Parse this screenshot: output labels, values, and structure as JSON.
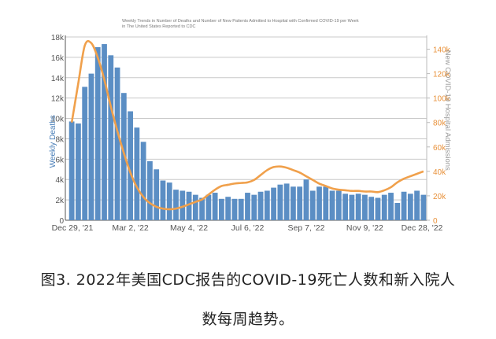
{
  "chart_data": {
    "type": "bar",
    "title_lines": [
      "Weekly Trends in Number of Deaths and Number of New Patients Admitted to Hospital with Confirmed COVID-19 per Week",
      "in The United States Reported to CDC"
    ],
    "ylabel": "Weekly Deaths",
    "ylabel_right": "New COVID-19 Hospital Admissions",
    "ylim": [
      0,
      18000
    ],
    "ylim_right": [
      0,
      150000
    ],
    "yticks": [
      "0",
      "2k",
      "4k",
      "6k",
      "8k",
      "10k",
      "12k",
      "14k",
      "16k",
      "18k"
    ],
    "yticks_right": [
      "0",
      "20k",
      "40k",
      "60k",
      "80k",
      "100k",
      "120k",
      "140k"
    ],
    "xticks": [
      "Dec 29, '21",
      "Mar 2, '22",
      "May 4, '22",
      "Jul 6, '22",
      "Sep 7, '22",
      "Nov 9, '22",
      "Dec 28, '22"
    ],
    "grid": true,
    "series": [
      {
        "values": [
          9700,
          9500,
          13100,
          14400,
          17000,
          17300,
          16200,
          15000,
          12500,
          10700,
          9100,
          7700,
          5800,
          5000,
          3900,
          3700,
          3000,
          2900,
          2800,
          2500,
          2200,
          2500,
          2700,
          2100,
          2300,
          2100,
          2100,
          2700,
          2500,
          2800,
          2900,
          3200,
          3500,
          3600,
          3300,
          3300,
          4000,
          2900,
          3300,
          3300,
          2900,
          2900,
          2600,
          2500,
          2600,
          2500,
          2300,
          2200,
          2500,
          2700,
          1700,
          2800,
          2600,
          2900,
          2500
        ],
        "color": "#5b8ec4"
      },
      {
        "values": [
          80000,
          112000,
          143000,
          145000,
          133000,
          115000,
          93000,
          73000,
          55000,
          39000,
          27000,
          19000,
          14000,
          11000,
          9500,
          9000,
          9500,
          11000,
          13000,
          15000,
          17000,
          21000,
          25000,
          28000,
          29000,
          30000,
          30500,
          31000,
          33000,
          37000,
          41000,
          43500,
          44000,
          43000,
          41000,
          39000,
          36000,
          33000,
          30000,
          28000,
          26000,
          25000,
          24500,
          24000,
          24000,
          23500,
          23500,
          23000,
          24500,
          27000,
          31000,
          34000,
          36000,
          38000,
          40000
        ],
        "color": "#f0a04b"
      }
    ]
  },
  "caption": {
    "line1": "图3. 2022年美国CDC报告的COVID-19死亡人数和新入院人",
    "line2": "数每周趋势。"
  }
}
